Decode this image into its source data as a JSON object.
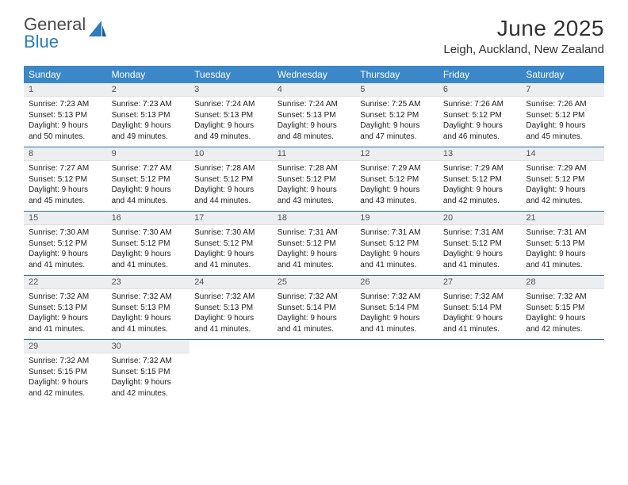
{
  "logo": {
    "text1": "General",
    "text2": "Blue"
  },
  "title": "June 2025",
  "location": "Leigh, Auckland, New Zealand",
  "dayNames": [
    "Sunday",
    "Monday",
    "Tuesday",
    "Wednesday",
    "Thursday",
    "Friday",
    "Saturday"
  ],
  "colors": {
    "header_bg": "#3b87c8",
    "header_text": "#ffffff",
    "divider": "#2b6ca3",
    "daynum_bg": "#eceeef",
    "body_text": "#222222",
    "logo_gray": "#4a4a4a",
    "logo_blue": "#2b7cc0"
  },
  "weeks": [
    [
      {
        "n": "1",
        "sr": "7:23 AM",
        "ss": "5:13 PM",
        "dl": "9 hours and 50 minutes."
      },
      {
        "n": "2",
        "sr": "7:23 AM",
        "ss": "5:13 PM",
        "dl": "9 hours and 49 minutes."
      },
      {
        "n": "3",
        "sr": "7:24 AM",
        "ss": "5:13 PM",
        "dl": "9 hours and 49 minutes."
      },
      {
        "n": "4",
        "sr": "7:24 AM",
        "ss": "5:13 PM",
        "dl": "9 hours and 48 minutes."
      },
      {
        "n": "5",
        "sr": "7:25 AM",
        "ss": "5:12 PM",
        "dl": "9 hours and 47 minutes."
      },
      {
        "n": "6",
        "sr": "7:26 AM",
        "ss": "5:12 PM",
        "dl": "9 hours and 46 minutes."
      },
      {
        "n": "7",
        "sr": "7:26 AM",
        "ss": "5:12 PM",
        "dl": "9 hours and 45 minutes."
      }
    ],
    [
      {
        "n": "8",
        "sr": "7:27 AM",
        "ss": "5:12 PM",
        "dl": "9 hours and 45 minutes."
      },
      {
        "n": "9",
        "sr": "7:27 AM",
        "ss": "5:12 PM",
        "dl": "9 hours and 44 minutes."
      },
      {
        "n": "10",
        "sr": "7:28 AM",
        "ss": "5:12 PM",
        "dl": "9 hours and 44 minutes."
      },
      {
        "n": "11",
        "sr": "7:28 AM",
        "ss": "5:12 PM",
        "dl": "9 hours and 43 minutes."
      },
      {
        "n": "12",
        "sr": "7:29 AM",
        "ss": "5:12 PM",
        "dl": "9 hours and 43 minutes."
      },
      {
        "n": "13",
        "sr": "7:29 AM",
        "ss": "5:12 PM",
        "dl": "9 hours and 42 minutes."
      },
      {
        "n": "14",
        "sr": "7:29 AM",
        "ss": "5:12 PM",
        "dl": "9 hours and 42 minutes."
      }
    ],
    [
      {
        "n": "15",
        "sr": "7:30 AM",
        "ss": "5:12 PM",
        "dl": "9 hours and 41 minutes."
      },
      {
        "n": "16",
        "sr": "7:30 AM",
        "ss": "5:12 PM",
        "dl": "9 hours and 41 minutes."
      },
      {
        "n": "17",
        "sr": "7:30 AM",
        "ss": "5:12 PM",
        "dl": "9 hours and 41 minutes."
      },
      {
        "n": "18",
        "sr": "7:31 AM",
        "ss": "5:12 PM",
        "dl": "9 hours and 41 minutes."
      },
      {
        "n": "19",
        "sr": "7:31 AM",
        "ss": "5:12 PM",
        "dl": "9 hours and 41 minutes."
      },
      {
        "n": "20",
        "sr": "7:31 AM",
        "ss": "5:12 PM",
        "dl": "9 hours and 41 minutes."
      },
      {
        "n": "21",
        "sr": "7:31 AM",
        "ss": "5:13 PM",
        "dl": "9 hours and 41 minutes."
      }
    ],
    [
      {
        "n": "22",
        "sr": "7:32 AM",
        "ss": "5:13 PM",
        "dl": "9 hours and 41 minutes."
      },
      {
        "n": "23",
        "sr": "7:32 AM",
        "ss": "5:13 PM",
        "dl": "9 hours and 41 minutes."
      },
      {
        "n": "24",
        "sr": "7:32 AM",
        "ss": "5:13 PM",
        "dl": "9 hours and 41 minutes."
      },
      {
        "n": "25",
        "sr": "7:32 AM",
        "ss": "5:14 PM",
        "dl": "9 hours and 41 minutes."
      },
      {
        "n": "26",
        "sr": "7:32 AM",
        "ss": "5:14 PM",
        "dl": "9 hours and 41 minutes."
      },
      {
        "n": "27",
        "sr": "7:32 AM",
        "ss": "5:14 PM",
        "dl": "9 hours and 41 minutes."
      },
      {
        "n": "28",
        "sr": "7:32 AM",
        "ss": "5:15 PM",
        "dl": "9 hours and 42 minutes."
      }
    ],
    [
      {
        "n": "29",
        "sr": "7:32 AM",
        "ss": "5:15 PM",
        "dl": "9 hours and 42 minutes."
      },
      {
        "n": "30",
        "sr": "7:32 AM",
        "ss": "5:15 PM",
        "dl": "9 hours and 42 minutes."
      },
      null,
      null,
      null,
      null,
      null
    ]
  ],
  "labels": {
    "sunrise": "Sunrise: ",
    "sunset": "Sunset: ",
    "daylight": "Daylight: "
  }
}
